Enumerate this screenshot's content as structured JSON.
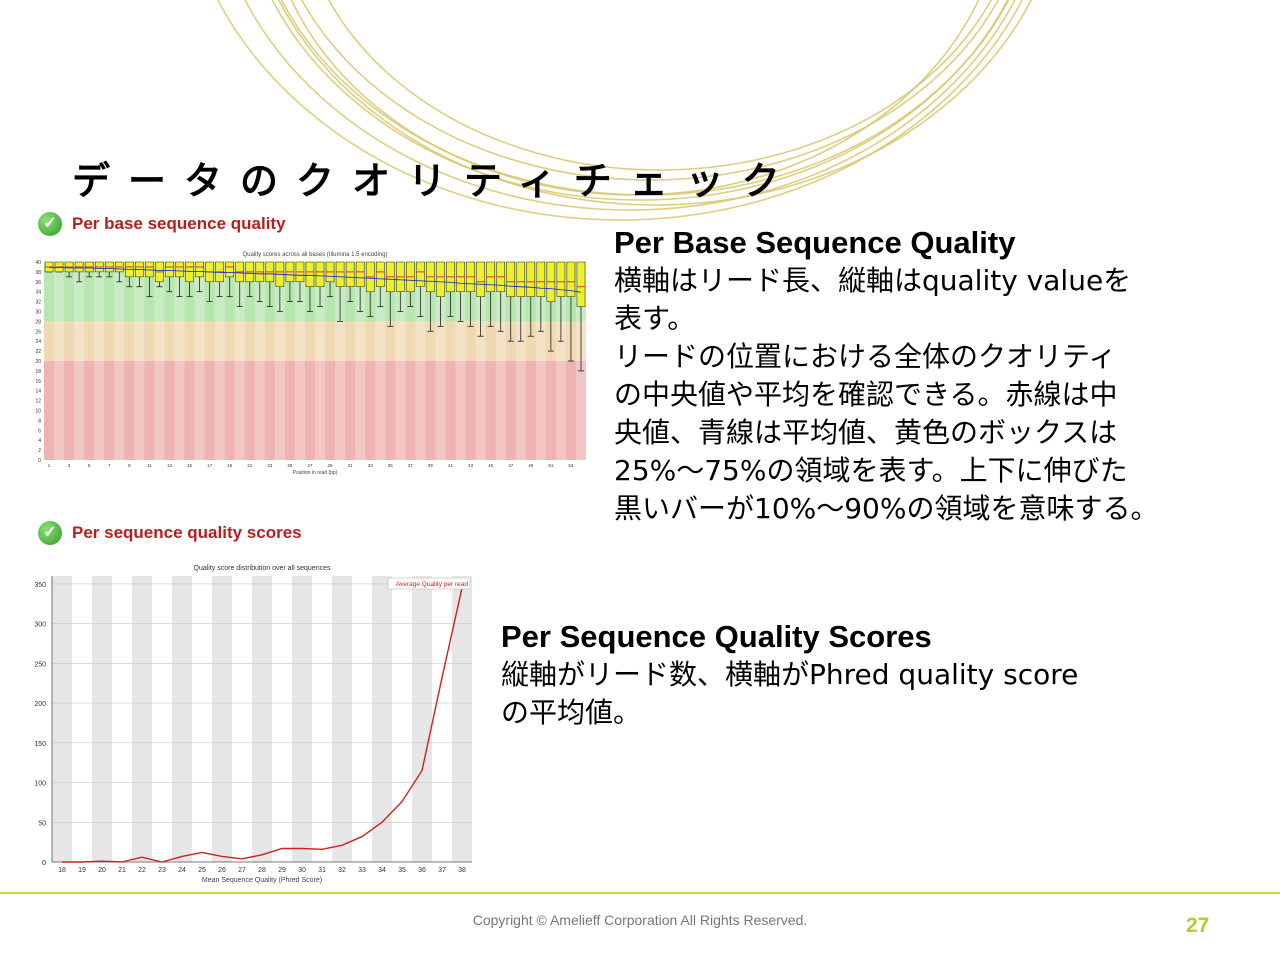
{
  "slide": {
    "title": "データのクオリティチェック",
    "copyright": "Copyright © Amelieff Corporation All Rights Reserved.",
    "page_number": "27",
    "accent_color": "#c7dc3c",
    "deco_arc_color": "#d8c56a"
  },
  "panels": {
    "per_base": {
      "status_icon": "check-ok-icon",
      "label": "Per base sequence quality"
    },
    "per_sequence": {
      "status_icon": "check-ok-icon",
      "label": "Per sequence quality scores"
    }
  },
  "descriptions": {
    "per_base": {
      "heading": "Per Base Sequence Quality",
      "lines": [
        "横軸はリード長、縦軸はquality valueを",
        "表す。",
        "リードの位置における全体のクオリティ",
        "の中央値や平均を確認できる。赤線は中",
        "央値、青線は平均値、黄色のボックスは",
        "25%〜75%の領域を表す。上下に伸びた",
        "黒いバーが10%〜90%の領域を意味する。"
      ]
    },
    "per_sequence": {
      "heading": "Per Sequence Quality Scores",
      "lines": [
        "縦軸がリード数、横軸がPhred quality score",
        "の平均値。"
      ]
    }
  },
  "chart_data": [
    {
      "type": "line",
      "title": "Quality score distribution over all sequences",
      "xlabel": "Mean Sequence Quality (Phred Score)",
      "ylabel": "",
      "x": [
        18,
        19,
        20,
        21,
        22,
        23,
        24,
        25,
        26,
        27,
        28,
        29,
        30,
        31,
        32,
        33,
        34,
        35,
        36,
        37,
        38
      ],
      "xticks": [
        "18",
        "19",
        "20",
        "21",
        "22",
        "23",
        "24",
        "25",
        "26",
        "27",
        "28",
        "29",
        "30",
        "31",
        "32",
        "33",
        "34",
        "35",
        "36",
        "37",
        "38"
      ],
      "yticks": [
        "0",
        "50",
        "100",
        "150",
        "200",
        "250",
        "300",
        "350"
      ],
      "ylim": [
        0,
        360
      ],
      "series": [
        {
          "name": "Average Quality per read",
          "color": "#cc2222",
          "values": [
            0,
            0,
            1,
            0,
            6,
            0,
            7,
            12,
            7,
            4,
            9,
            17,
            17,
            16,
            21,
            32,
            50,
            76,
            115,
            232,
            345
          ]
        }
      ],
      "legend": "top-right",
      "grid": true,
      "band_color": "#e6e6e6"
    },
    {
      "type": "box",
      "title": "Quality scores across all bases (Illumina 1.5 encoding)",
      "xlabel": "Position in read (bp)",
      "ylabel": "",
      "positions": 54,
      "ylim": [
        0,
        40
      ],
      "zones": [
        {
          "from": 28,
          "to": 40,
          "color": "#b8e6b0"
        },
        {
          "from": 20,
          "to": 28,
          "color": "#efd9b3"
        },
        {
          "from": 0,
          "to": 20,
          "color": "#efb3b3"
        }
      ],
      "box_color": "#f0f02a",
      "q1": [
        38,
        38,
        38,
        38,
        38,
        38,
        38,
        38,
        37,
        37,
        37,
        36,
        37,
        37,
        36,
        37,
        36,
        36,
        37,
        36,
        36,
        36,
        36,
        35,
        36,
        36,
        35,
        35,
        36,
        35,
        35,
        35,
        34,
        35,
        34,
        34,
        34,
        35,
        34,
        33,
        34,
        34,
        34,
        33,
        34,
        34,
        33,
        33,
        33,
        33,
        32,
        33,
        33,
        31
      ],
      "q3": [
        40,
        40,
        40,
        40,
        40,
        40,
        40,
        40,
        40,
        40,
        40,
        40,
        40,
        40,
        40,
        40,
        40,
        40,
        40,
        40,
        40,
        40,
        40,
        40,
        40,
        40,
        40,
        40,
        40,
        40,
        40,
        40,
        40,
        40,
        40,
        40,
        40,
        40,
        40,
        40,
        40,
        40,
        40,
        40,
        40,
        40,
        40,
        40,
        40,
        40,
        40,
        40,
        40,
        40
      ],
      "lower_whisker": [
        38,
        38,
        37,
        36,
        37,
        37,
        37,
        36,
        35,
        35,
        33,
        35,
        34,
        33,
        33,
        34,
        32,
        33,
        33,
        31,
        33,
        32,
        31,
        30,
        32,
        32,
        30,
        31,
        33,
        28,
        32,
        30,
        29,
        31,
        27,
        30,
        31,
        29,
        26,
        27,
        29,
        28,
        27,
        25,
        27,
        26,
        24,
        24,
        25,
        26,
        22,
        24,
        20,
        18
      ],
      "median": [
        39,
        39,
        39,
        39,
        39,
        39,
        39,
        39,
        39,
        39,
        39,
        38,
        39,
        39,
        39,
        39,
        38,
        38,
        39,
        38,
        38,
        38,
        38,
        38,
        38,
        38,
        38,
        38,
        38,
        38,
        38,
        38,
        37,
        38,
        37,
        37,
        37,
        38,
        37,
        37,
        37,
        37,
        37,
        36,
        37,
        37,
        36,
        36,
        36,
        36,
        36,
        36,
        36,
        35
      ],
      "mean": [
        38.9,
        38.9,
        38.8,
        38.8,
        38.8,
        38.7,
        38.7,
        38.6,
        38.5,
        38.5,
        38.4,
        38.3,
        38.3,
        38.2,
        38.1,
        38.1,
        38.0,
        37.9,
        37.9,
        37.8,
        37.7,
        37.6,
        37.6,
        37.5,
        37.4,
        37.3,
        37.3,
        37.2,
        37.1,
        37.0,
        36.9,
        36.8,
        36.7,
        36.6,
        36.5,
        36.4,
        36.3,
        36.2,
        36.1,
        36.0,
        35.9,
        35.7,
        35.6,
        35.5,
        35.4,
        35.3,
        35.1,
        35.0,
        34.9,
        34.7,
        34.6,
        34.4,
        34.2,
        33.9
      ]
    }
  ]
}
